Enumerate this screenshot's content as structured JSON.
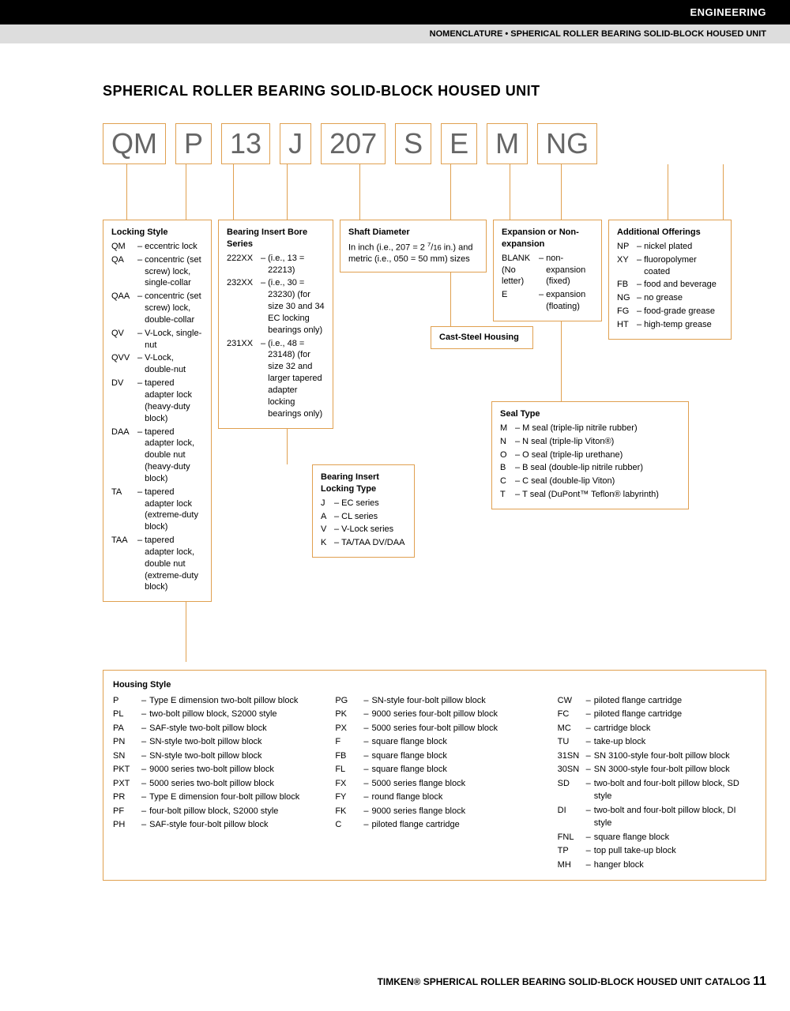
{
  "header": {
    "category": "ENGINEERING",
    "subtitle": "NOMENCLATURE • SPHERICAL ROLLER BEARING SOLID-BLOCK HOUSED UNIT"
  },
  "title": "SPHERICAL ROLLER BEARING SOLID-BLOCK HOUSED UNIT",
  "codes": [
    "QM",
    "P",
    "13",
    "J",
    "207",
    "S",
    "E",
    "M",
    "NG"
  ],
  "locking_style": {
    "title": "Locking Style",
    "items": [
      {
        "c": "QM",
        "t": "eccentric lock"
      },
      {
        "c": "QA",
        "t": "concentric (set screw) lock, single-collar"
      },
      {
        "c": "QAA",
        "t": "concentric (set screw) lock, double-collar"
      },
      {
        "c": "QV",
        "t": "V-Lock, single-nut"
      },
      {
        "c": "QVV",
        "t": "V-Lock, double-nut"
      },
      {
        "c": "DV",
        "t": "tapered adapter lock (heavy-duty block)"
      },
      {
        "c": "DAA",
        "t": "tapered adapter lock, double nut (heavy-duty block)"
      },
      {
        "c": "TA",
        "t": "tapered adapter lock (extreme-duty block)"
      },
      {
        "c": "TAA",
        "t": "tapered adapter lock, double nut (extreme-duty block)"
      }
    ]
  },
  "bearing_insert": {
    "title": "Bearing Insert Bore Series",
    "items": [
      {
        "c": "222XX",
        "t": "(i.e., 13 = 22213)"
      },
      {
        "c": "232XX",
        "t": "(i.e., 30 = 23230) (for size 30 and 34 EC locking bearings only)"
      },
      {
        "c": "231XX",
        "t": "(i.e., 48 = 23148) (for size 32 and larger tapered adapter locking bearings only)"
      }
    ]
  },
  "shaft_diameter": {
    "title": "Shaft Diameter",
    "text": "In inch (i.e., 207 = 2 7/16 in.) and metric (i.e., 050 = 50 mm) sizes"
  },
  "expansion": {
    "title": "Expansion or Non-expansion",
    "items": [
      {
        "c": "BLANK (No letter)",
        "t": "non-expansion (fixed)"
      },
      {
        "c": "E",
        "t": "expansion (floating)"
      }
    ]
  },
  "additional": {
    "title": "Additional Offerings",
    "items": [
      {
        "c": "NP",
        "t": "nickel plated"
      },
      {
        "c": "XY",
        "t": "fluoropolymer coated"
      },
      {
        "c": "FB",
        "t": "food and beverage"
      },
      {
        "c": "NG",
        "t": "no grease"
      },
      {
        "c": "FG",
        "t": "food-grade grease"
      },
      {
        "c": "HT",
        "t": "high-temp grease"
      }
    ]
  },
  "cast_steel": {
    "title": "Cast-Steel Housing"
  },
  "locking_type": {
    "title": "Bearing Insert Locking Type",
    "items": [
      {
        "c": "J",
        "t": "EC series"
      },
      {
        "c": "A",
        "t": "CL series"
      },
      {
        "c": "V",
        "t": "V-Lock series"
      },
      {
        "c": "K",
        "t": "TA/TAA DV/DAA"
      }
    ]
  },
  "seal_type": {
    "title": "Seal Type",
    "items": [
      {
        "c": "M",
        "t": "M seal (triple-lip nitrile rubber)"
      },
      {
        "c": "N",
        "t": "N seal (triple-lip Viton®)"
      },
      {
        "c": "O",
        "t": "O seal (triple-lip urethane)"
      },
      {
        "c": "B",
        "t": "B seal (double-lip nitrile rubber)"
      },
      {
        "c": "C",
        "t": "C seal (double-lip Viton)"
      },
      {
        "c": "T",
        "t": "T seal (DuPont™ Teflon® labyrinth)"
      }
    ]
  },
  "housing": {
    "title": "Housing Style",
    "col1": [
      {
        "c": "P",
        "t": "Type E dimension two-bolt pillow block"
      },
      {
        "c": "PL",
        "t": "two-bolt pillow block, S2000 style"
      },
      {
        "c": "PA",
        "t": "SAF-style two-bolt pillow block"
      },
      {
        "c": "PN",
        "t": "SN-style two-bolt pillow block"
      },
      {
        "c": "SN",
        "t": "SN-style two-bolt pillow block"
      },
      {
        "c": "PKT",
        "t": "9000 series two-bolt pillow block"
      },
      {
        "c": "PXT",
        "t": "5000 series two-bolt pillow block"
      },
      {
        "c": "PR",
        "t": "Type E dimension four-bolt pillow block"
      },
      {
        "c": "PF",
        "t": "four-bolt pillow block, S2000 style"
      },
      {
        "c": "PH",
        "t": "SAF-style four-bolt pillow block"
      }
    ],
    "col2": [
      {
        "c": "PG",
        "t": "SN-style four-bolt pillow block"
      },
      {
        "c": "PK",
        "t": "9000 series four-bolt pillow block"
      },
      {
        "c": "PX",
        "t": "5000 series four-bolt pillow block"
      },
      {
        "c": "F",
        "t": "square flange block"
      },
      {
        "c": "FB",
        "t": "square flange block"
      },
      {
        "c": "FL",
        "t": "square flange block"
      },
      {
        "c": "FX",
        "t": "5000 series flange block"
      },
      {
        "c": "FY",
        "t": "round flange block"
      },
      {
        "c": "FK",
        "t": "9000 series flange block"
      },
      {
        "c": "C",
        "t": "piloted flange cartridge"
      }
    ],
    "col3": [
      {
        "c": "CW",
        "t": "piloted flange cartridge"
      },
      {
        "c": "FC",
        "t": "piloted flange cartridge"
      },
      {
        "c": "MC",
        "t": "cartridge block"
      },
      {
        "c": "TU",
        "t": "take-up block"
      },
      {
        "c": "31SN",
        "t": "SN 3100-style four-bolt pillow block"
      },
      {
        "c": "30SN",
        "t": "SN 3000-style four-bolt pillow block"
      },
      {
        "c": "SD",
        "t": "two-bolt and four-bolt pillow block, SD style"
      },
      {
        "c": "DI",
        "t": "two-bolt and four-bolt pillow block, DI style"
      },
      {
        "c": "FNL",
        "t": "square flange block"
      },
      {
        "c": "TP",
        "t": "top pull take-up block"
      },
      {
        "c": "MH",
        "t": "hanger block"
      }
    ]
  },
  "footer": {
    "text": "TIMKEN® SPHERICAL ROLLER BEARING SOLID-BLOCK HOUSED UNIT CATALOG",
    "page": "11"
  },
  "colors": {
    "orange": "#e0a050",
    "black": "#000000",
    "gray": "#dddddd",
    "text_gray": "#666666"
  }
}
